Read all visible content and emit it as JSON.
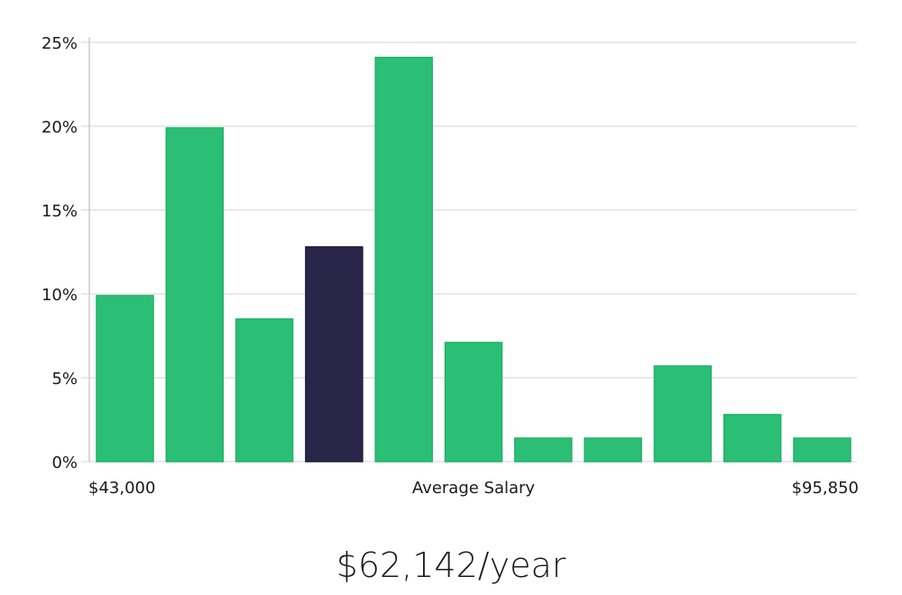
{
  "chart_data": {
    "type": "bar",
    "title": "",
    "xlabel": "Average Salary",
    "ylabel": "",
    "x_range_labels": {
      "min": "$43,000",
      "max": "$95,850"
    },
    "ylim": [
      0,
      25
    ],
    "yticks": [
      0,
      5,
      10,
      15,
      20,
      25
    ],
    "ytick_suffix": "%",
    "grid": true,
    "values": [
      9.9,
      19.9,
      8.5,
      12.8,
      24.1,
      7.1,
      1.4,
      1.4,
      5.7,
      2.8,
      1.4
    ],
    "highlight_index": 3,
    "colors": {
      "bar": "#2bbf76",
      "highlight": "#29264a",
      "grid": "#e2e2e2",
      "axis": "#cccccc"
    }
  },
  "summary": {
    "average_salary": "$62,142/year"
  }
}
